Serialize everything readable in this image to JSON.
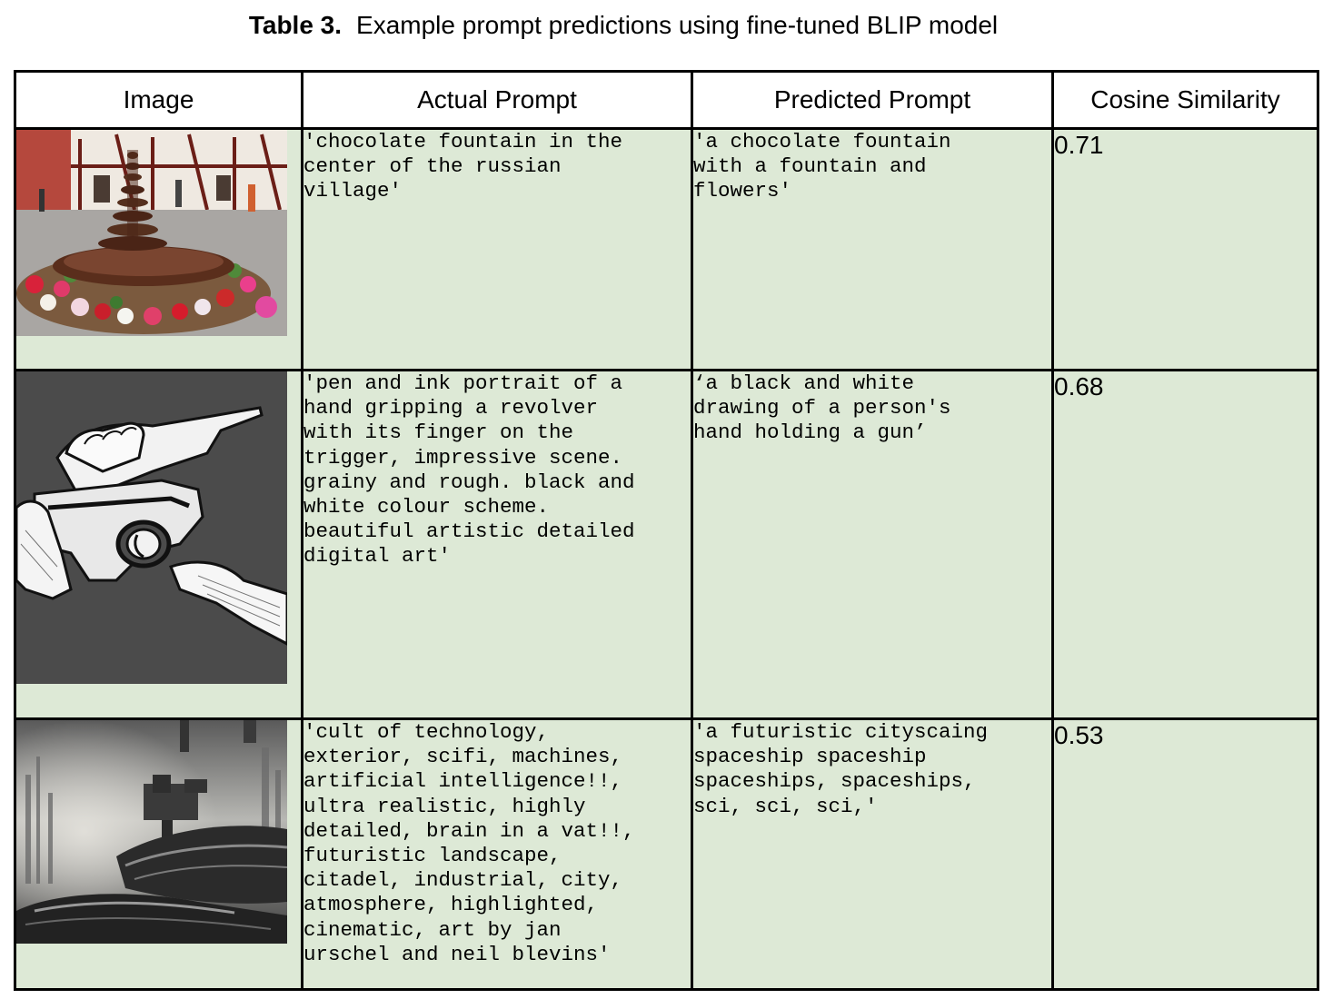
{
  "caption": {
    "label": "Table 3.",
    "text": "Example prompt predictions using fine-tuned BLIP model"
  },
  "table": {
    "headers": [
      "Image",
      "Actual Prompt",
      "Predicted Prompt",
      "Cosine Similarity"
    ],
    "rows": [
      {
        "image": "chocolate-fountain-village-image",
        "actual": "'chocolate fountain in the\ncenter of the russian\nvillage'",
        "predicted": "'a chocolate fountain\nwith a fountain and\nflowers'",
        "score": "0.71"
      },
      {
        "image": "hand-holding-revolver-drawing-image",
        "actual": "'pen and ink portrait of a\nhand gripping a revolver\nwith its finger on the\ntrigger, impressive scene.\ngrainy and rough. black and\nwhite colour scheme.\nbeautiful artistic detailed\ndigital art'",
        "predicted": "‘a black and white\ndrawing of a person's\nhand holding a gun’",
        "score": "0.68"
      },
      {
        "image": "futuristic-spaceship-city-image",
        "actual": "'cult of technology,\nexterior, scifi, machines,\nartificial intelligence!!,\nultra realistic, highly\ndetailed, brain in a vat!!,\nfuturistic landscape,\ncitadel, industrial, city,\natmosphere, highlighted,\ncinematic, art by jan\nurschel and neil blevins'",
        "predicted": "'a futuristic cityscaing\nspaceship spaceship\nspaceships, spaceships,\nsci, sci, sci,'",
        "score": "0.53"
      }
    ]
  },
  "colors": {
    "cell_background": "#dde9d6",
    "header_background": "#ffffff",
    "border": "#000000"
  }
}
